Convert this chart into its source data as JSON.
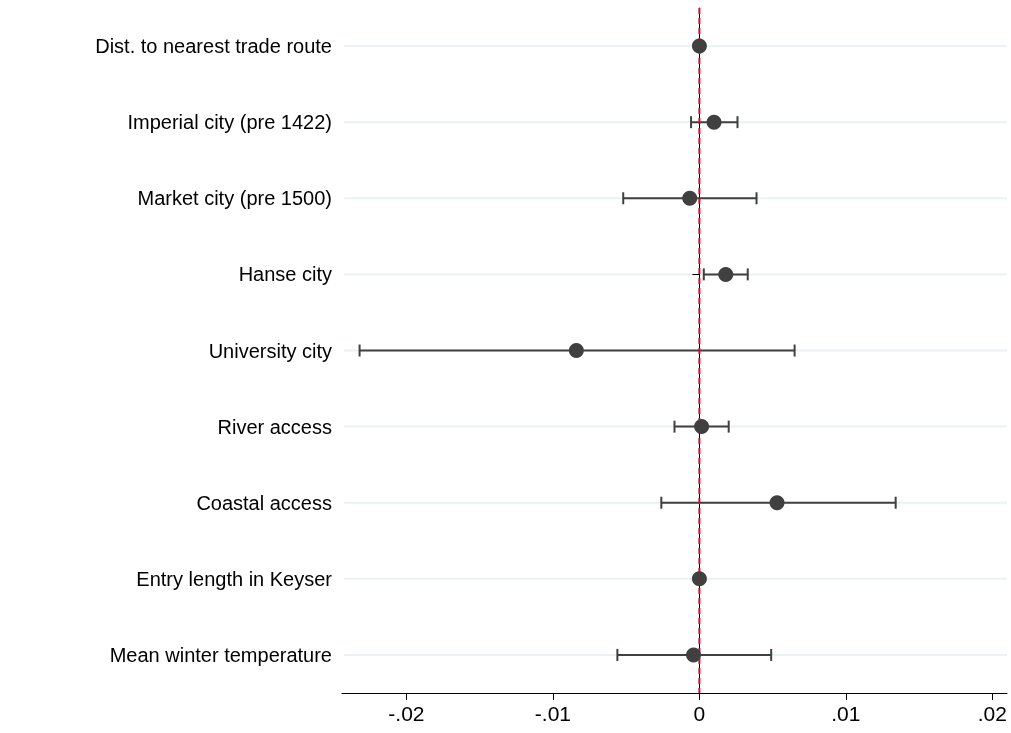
{
  "chart_data": {
    "type": "scatter",
    "orientation": "horizontal",
    "categories": [
      "Dist. to nearest trade route",
      "Imperial city (pre 1422)",
      "Market city (pre 1500)",
      "Hanse city",
      "University city",
      "River access",
      "Coastal access",
      "Entry length in Keyser",
      "Mean winter temperature"
    ],
    "values": [
      0,
      0.001,
      -0.00066,
      0.0018,
      -0.0084,
      0.00015,
      0.0053,
      0,
      -0.0004
    ],
    "errors": [
      null,
      [
        -0.00057,
        0.0026
      ],
      [
        -0.0052,
        0.0039
      ],
      [
        0.0003,
        0.0033
      ],
      [
        -0.0232,
        0.0065
      ],
      [
        -0.0017,
        0.002
      ],
      [
        -0.0026,
        0.0134
      ],
      null,
      [
        -0.0056,
        0.0049
      ]
    ],
    "color": "#404040",
    "marker": "circle",
    "xlim": [
      -0.0244,
      0.021
    ],
    "xticks": [
      {
        "value": -0.02,
        "label": "-.02"
      },
      {
        "value": -0.01,
        "label": "-.01"
      },
      0,
      {
        "value": 0.01,
        "label": ".01"
      },
      {
        "value": 0.02,
        "label": ".02"
      }
    ],
    "ref_lines": [
      {
        "axis": "x",
        "value": 0,
        "color": "#c8102e",
        "line_style": "dashed"
      }
    ],
    "grid": "y"
  }
}
